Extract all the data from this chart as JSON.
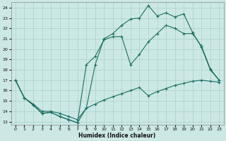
{
  "xlabel": "Humidex (Indice chaleur)",
  "bg_color": "#cce8e5",
  "line_color": "#1a7062",
  "grid_color": "#aacfcb",
  "xlim": [
    -0.5,
    23.5
  ],
  "ylim": [
    12.7,
    24.5
  ],
  "xticks": [
    0,
    1,
    2,
    3,
    4,
    5,
    6,
    7,
    8,
    9,
    10,
    11,
    12,
    13,
    14,
    15,
    16,
    17,
    18,
    19,
    20,
    21,
    22,
    23
  ],
  "yticks": [
    13,
    14,
    15,
    16,
    17,
    18,
    19,
    20,
    21,
    22,
    23,
    24
  ],
  "line1_x": [
    0,
    1,
    2,
    3,
    4,
    5,
    6,
    7,
    8,
    9,
    10,
    11,
    12,
    13,
    14,
    15,
    16,
    17,
    18,
    19,
    20,
    21,
    22,
    23
  ],
  "line1_y": [
    17.0,
    15.3,
    14.6,
    13.8,
    13.9,
    13.5,
    13.2,
    12.9,
    14.3,
    18.5,
    21.0,
    21.5,
    22.3,
    22.9,
    23.0,
    24.2,
    23.2,
    23.5,
    23.1,
    23.4,
    21.6,
    20.2,
    18.0,
    17.0
  ],
  "line2_x": [
    0,
    1,
    2,
    3,
    4,
    5,
    6,
    7,
    8,
    9,
    10,
    11,
    12,
    13,
    14,
    15,
    16,
    17,
    18,
    19,
    20,
    21,
    22,
    23
  ],
  "line2_y": [
    17.0,
    15.3,
    14.6,
    13.8,
    13.9,
    13.5,
    13.2,
    12.9,
    18.5,
    19.3,
    20.9,
    21.2,
    21.2,
    18.5,
    19.5,
    20.7,
    21.5,
    22.3,
    22.0,
    21.5,
    21.5,
    20.3,
    18.1,
    17.0
  ],
  "line3_x": [
    0,
    1,
    2,
    3,
    4,
    5,
    6,
    7,
    8,
    9,
    10,
    11,
    12,
    13,
    14,
    15,
    16,
    17,
    18,
    19,
    20,
    21,
    22,
    23
  ],
  "line3_y": [
    17.0,
    15.3,
    14.7,
    14.0,
    14.0,
    13.8,
    13.5,
    13.2,
    14.3,
    14.7,
    15.1,
    15.4,
    15.7,
    16.0,
    16.3,
    15.5,
    15.9,
    16.2,
    16.5,
    16.7,
    16.9,
    17.0,
    16.9,
    16.8
  ]
}
